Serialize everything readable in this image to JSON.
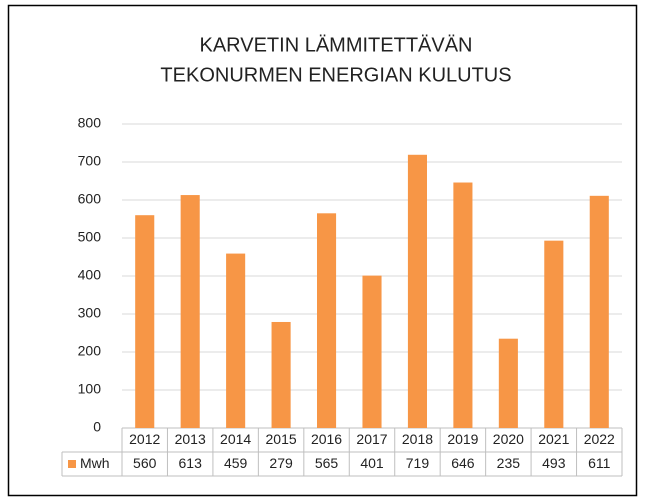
{
  "chart_data": {
    "type": "bar",
    "title": [
      "KARVETIN LÄMMITETTÄVÄN",
      "TEKONURMEN ENERGIAN KULUTUS"
    ],
    "categories": [
      "2012",
      "2013",
      "2014",
      "2015",
      "2016",
      "2017",
      "2018",
      "2019",
      "2020",
      "2021",
      "2022"
    ],
    "series": [
      {
        "name": "Mwh",
        "color": "#f79646",
        "values": [
          560,
          613,
          459,
          279,
          565,
          401,
          719,
          646,
          235,
          493,
          611
        ]
      }
    ],
    "ylim": [
      0,
      800
    ],
    "yticks": [
      0,
      100,
      200,
      300,
      400,
      500,
      600,
      700,
      800
    ],
    "grid": true,
    "data_table": true
  }
}
